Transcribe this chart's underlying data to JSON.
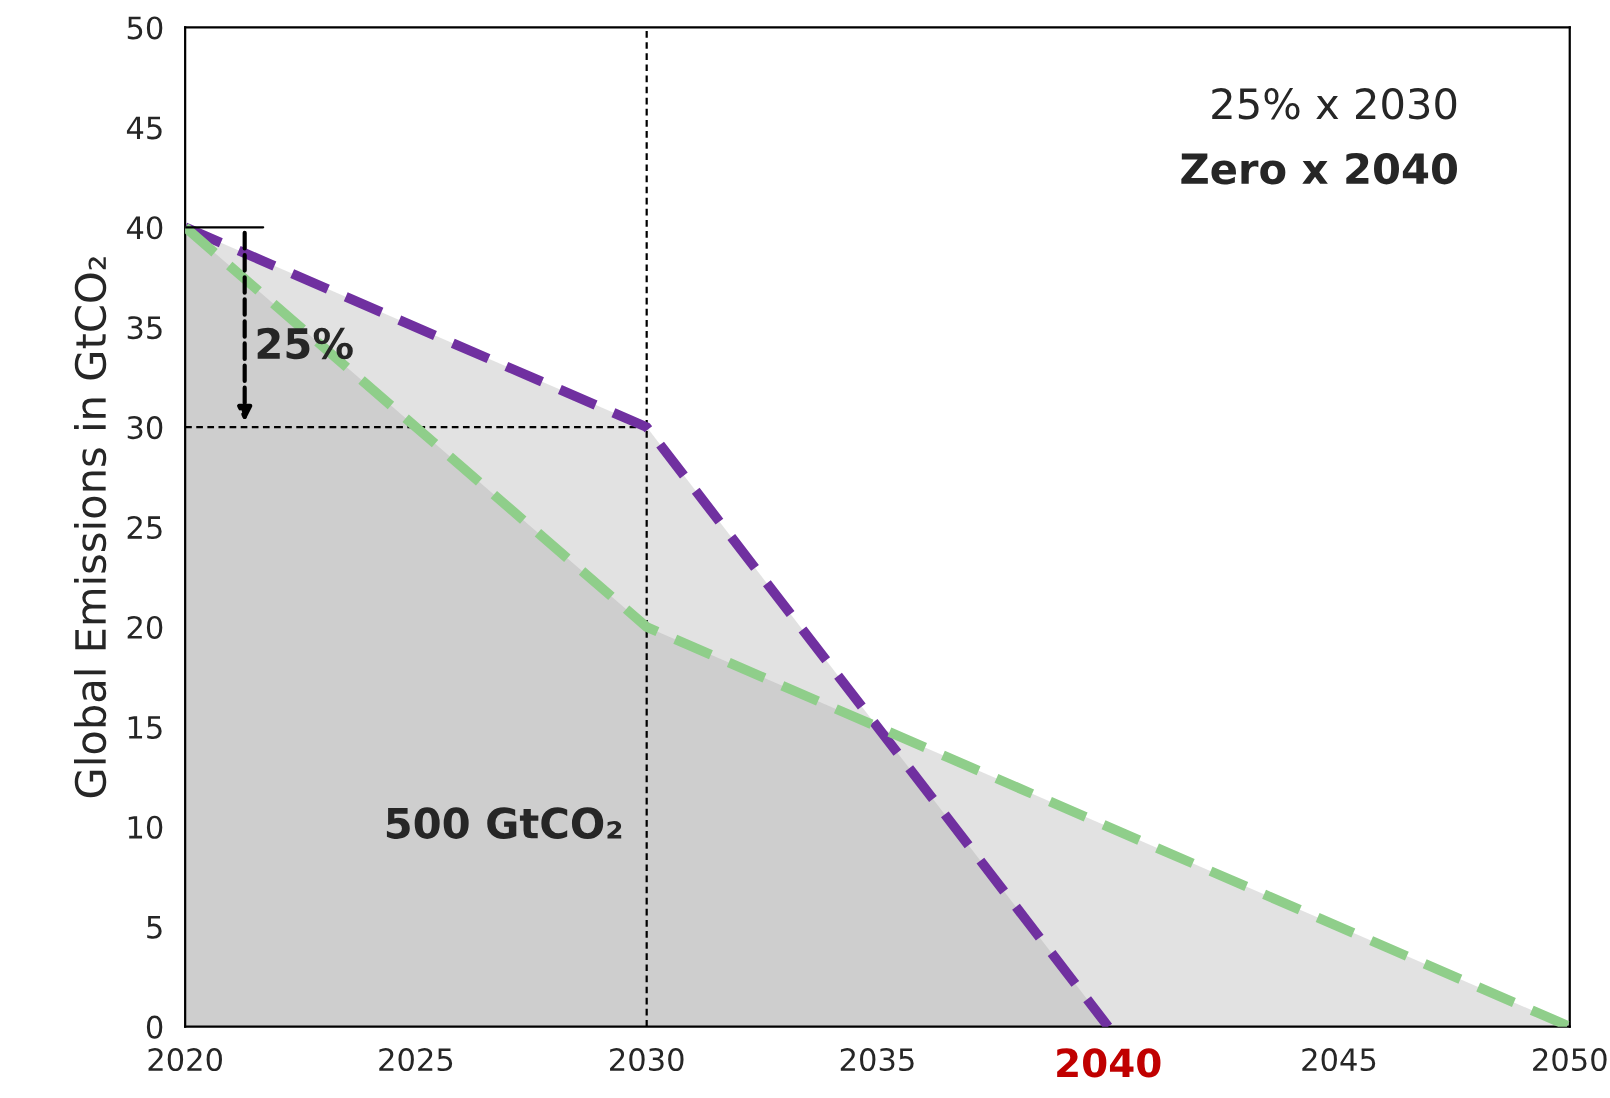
{
  "chart_data": {
    "type": "line",
    "ylabel": "Global Emissions in GtCO₂",
    "series": [
      {
        "color": "#7030a0",
        "x": [
          2020,
          2030,
          2040
        ],
        "values": [
          40,
          30,
          0
        ]
      },
      {
        "color": "#8fce8a",
        "x": [
          2020,
          2030,
          2035,
          2050
        ],
        "values": [
          40,
          20,
          15,
          0
        ]
      }
    ],
    "line_style": "dashed",
    "marker": "none",
    "grid": false,
    "legend": false,
    "xlim": [
      2020,
      2050
    ],
    "xticks": [
      2020,
      2025,
      2030,
      2035,
      2040,
      2045,
      2050
    ],
    "ylim": [
      0,
      50
    ],
    "yticks": [
      0,
      5,
      10,
      15,
      20,
      25,
      30,
      35,
      40,
      45,
      50
    ],
    "ref_lines": [
      {
        "axis": "x",
        "value": 2030,
        "line_style": "dashed"
      },
      {
        "axis": "y",
        "value": 30,
        "line_style": "dashed"
      }
    ],
    "annotations": [
      "25% x 2030",
      "Zero x 2040",
      "25%",
      "500 GtCO₂"
    ]
  }
}
